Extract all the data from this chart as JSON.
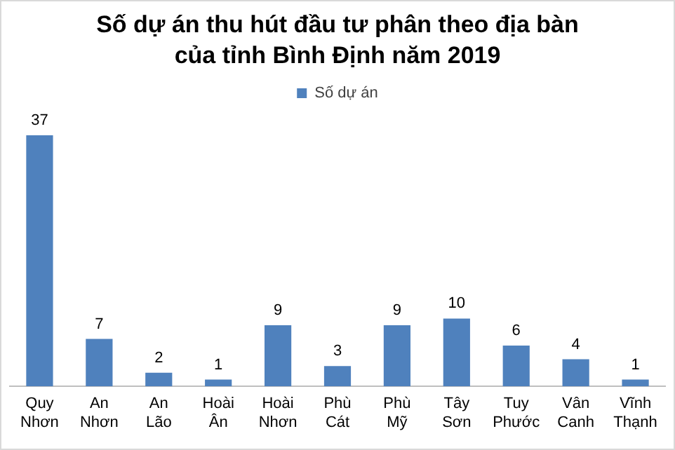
{
  "chart_data": {
    "type": "bar",
    "title": "Số dự án thu hút đầu tư phân theo địa bàn của tỉnh Bình Định năm 2019",
    "categories": [
      "Quy Nhơn",
      "An Nhơn",
      "An Lão",
      "Hoài Ân",
      "Hoài Nhơn",
      "Phù Cát",
      "Phù Mỹ",
      "Tây Sơn",
      "Tuy Phước",
      "Vân Canh",
      "Vĩnh Thạnh"
    ],
    "series": [
      {
        "name": "Số dự án",
        "color": "#4f81bd",
        "values": [
          37,
          7,
          2,
          1,
          9,
          3,
          9,
          10,
          6,
          4,
          1
        ]
      }
    ],
    "data_labels": true,
    "legend": "top",
    "grid": false,
    "tick_labels": "x"
  }
}
